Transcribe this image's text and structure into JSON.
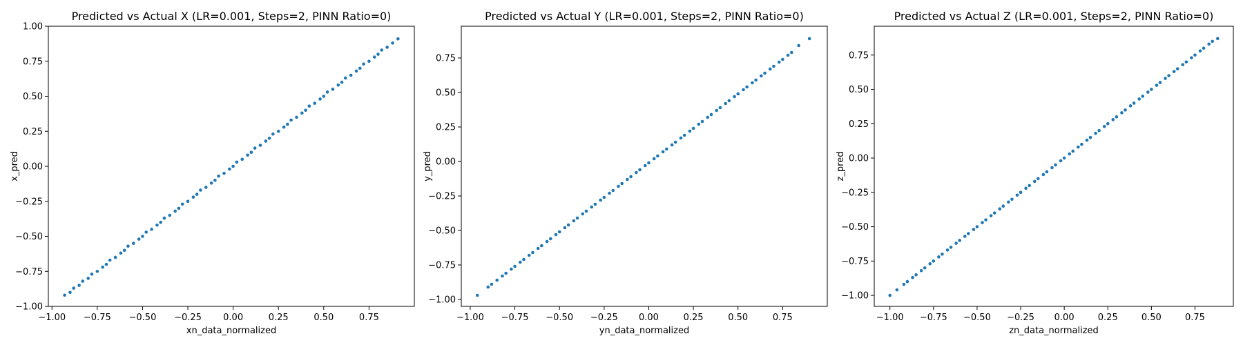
{
  "chart_data": [
    {
      "type": "scatter",
      "title": "Predicted vs Actual X (LR=0.001, Steps=2, PINN Ratio=0)",
      "xlabel": "xn_data_normalized",
      "ylabel": "x_pred",
      "xlim": [
        -1.02,
        1.0
      ],
      "ylim": [
        -1.0,
        1.0
      ],
      "xticks": [
        -1.0,
        -0.75,
        -0.5,
        -0.25,
        0.0,
        0.25,
        0.5,
        0.75
      ],
      "yticks": [
        -1.0,
        -0.75,
        -0.5,
        -0.25,
        0.0,
        0.25,
        0.5,
        0.75,
        1.0
      ],
      "xtick_labels": [
        "−1.00",
        "−0.75",
        "−0.50",
        "−0.25",
        "0.00",
        "0.25",
        "0.50",
        "0.75"
      ],
      "ytick_labels": [
        "−1.00",
        "−0.75",
        "−0.50",
        "−0.25",
        "0.00",
        "0.25",
        "0.50",
        "0.75",
        "1.00"
      ],
      "color": "#1f77b4",
      "grid": false,
      "series": [
        {
          "x": [
            -0.93,
            -0.9,
            -0.88,
            -0.85,
            -0.83,
            -0.8,
            -0.78,
            -0.75,
            -0.72,
            -0.7,
            -0.68,
            -0.65,
            -0.62,
            -0.6,
            -0.58,
            -0.55,
            -0.52,
            -0.5,
            -0.48,
            -0.45,
            -0.42,
            -0.4,
            -0.38,
            -0.35,
            -0.32,
            -0.3,
            -0.28,
            -0.25,
            -0.22,
            -0.2,
            -0.18,
            -0.15,
            -0.12,
            -0.1,
            -0.08,
            -0.05,
            -0.02,
            0.0,
            0.02,
            0.05,
            0.08,
            0.1,
            0.12,
            0.15,
            0.18,
            0.2,
            0.22,
            0.25,
            0.28,
            0.3,
            0.32,
            0.35,
            0.38,
            0.4,
            0.42,
            0.45,
            0.48,
            0.5,
            0.52,
            0.55,
            0.58,
            0.6,
            0.62,
            0.65,
            0.68,
            0.7,
            0.72,
            0.75,
            0.78,
            0.8,
            0.82,
            0.85,
            0.88,
            0.91
          ],
          "y": [
            -0.92,
            -0.9,
            -0.87,
            -0.85,
            -0.82,
            -0.8,
            -0.77,
            -0.75,
            -0.72,
            -0.7,
            -0.67,
            -0.65,
            -0.62,
            -0.6,
            -0.57,
            -0.55,
            -0.52,
            -0.5,
            -0.47,
            -0.45,
            -0.42,
            -0.4,
            -0.37,
            -0.35,
            -0.32,
            -0.3,
            -0.27,
            -0.25,
            -0.22,
            -0.2,
            -0.17,
            -0.15,
            -0.12,
            -0.1,
            -0.07,
            -0.05,
            -0.02,
            0.0,
            0.03,
            0.05,
            0.08,
            0.1,
            0.13,
            0.15,
            0.18,
            0.2,
            0.23,
            0.25,
            0.28,
            0.3,
            0.33,
            0.35,
            0.38,
            0.4,
            0.43,
            0.45,
            0.48,
            0.5,
            0.53,
            0.55,
            0.58,
            0.6,
            0.63,
            0.65,
            0.68,
            0.7,
            0.73,
            0.75,
            0.78,
            0.8,
            0.83,
            0.85,
            0.88,
            0.91
          ]
        }
      ]
    },
    {
      "type": "scatter",
      "title": "Predicted vs Actual Y (LR=0.001, Steps=2, PINN Ratio=0)",
      "xlabel": "yn_data_normalized",
      "ylabel": "y_pred",
      "xlim": [
        -1.05,
        1.0
      ],
      "ylim": [
        -1.05,
        0.98
      ],
      "xticks": [
        -1.0,
        -0.75,
        -0.5,
        -0.25,
        0.0,
        0.25,
        0.5,
        0.75
      ],
      "yticks": [
        -1.0,
        -0.75,
        -0.5,
        -0.25,
        0.0,
        0.25,
        0.5,
        0.75
      ],
      "xtick_labels": [
        "−1.00",
        "−0.75",
        "−0.50",
        "−0.25",
        "0.00",
        "0.25",
        "0.50",
        "0.75"
      ],
      "ytick_labels": [
        "−1.00",
        "−0.75",
        "−0.50",
        "−0.25",
        "0.00",
        "0.25",
        "0.50",
        "0.75"
      ],
      "color": "#1f77b4",
      "grid": false,
      "series": [
        {
          "x": [
            -0.96,
            -0.9,
            -0.88,
            -0.85,
            -0.82,
            -0.8,
            -0.77,
            -0.75,
            -0.72,
            -0.7,
            -0.67,
            -0.65,
            -0.62,
            -0.6,
            -0.57,
            -0.55,
            -0.52,
            -0.5,
            -0.47,
            -0.45,
            -0.42,
            -0.4,
            -0.37,
            -0.35,
            -0.32,
            -0.3,
            -0.27,
            -0.25,
            -0.22,
            -0.2,
            -0.17,
            -0.15,
            -0.12,
            -0.1,
            -0.07,
            -0.05,
            -0.02,
            0.0,
            0.03,
            0.05,
            0.08,
            0.1,
            0.13,
            0.15,
            0.18,
            0.2,
            0.23,
            0.25,
            0.28,
            0.3,
            0.33,
            0.35,
            0.38,
            0.4,
            0.43,
            0.45,
            0.48,
            0.5,
            0.53,
            0.55,
            0.58,
            0.6,
            0.63,
            0.65,
            0.68,
            0.7,
            0.73,
            0.75,
            0.78,
            0.8,
            0.84,
            0.9
          ],
          "y": [
            -0.97,
            -0.91,
            -0.89,
            -0.86,
            -0.83,
            -0.81,
            -0.78,
            -0.76,
            -0.73,
            -0.71,
            -0.68,
            -0.66,
            -0.63,
            -0.61,
            -0.58,
            -0.56,
            -0.53,
            -0.51,
            -0.48,
            -0.46,
            -0.43,
            -0.41,
            -0.38,
            -0.36,
            -0.33,
            -0.31,
            -0.28,
            -0.26,
            -0.23,
            -0.21,
            -0.18,
            -0.16,
            -0.13,
            -0.11,
            -0.08,
            -0.06,
            -0.03,
            -0.01,
            0.02,
            0.04,
            0.07,
            0.09,
            0.12,
            0.14,
            0.17,
            0.19,
            0.22,
            0.24,
            0.27,
            0.29,
            0.32,
            0.34,
            0.37,
            0.39,
            0.42,
            0.44,
            0.47,
            0.49,
            0.52,
            0.54,
            0.57,
            0.59,
            0.62,
            0.64,
            0.67,
            0.69,
            0.72,
            0.74,
            0.77,
            0.79,
            0.84,
            0.89
          ]
        }
      ]
    },
    {
      "type": "scatter",
      "title": "Predicted vs Actual Z (LR=0.001, Steps=2, PINN Ratio=0)",
      "xlabel": "zn_data_normalized",
      "ylabel": "z_pred",
      "xlim": [
        -1.09,
        0.97
      ],
      "ylim": [
        -1.08,
        0.96
      ],
      "xticks": [
        -1.0,
        -0.75,
        -0.5,
        -0.25,
        0.0,
        0.25,
        0.5,
        0.75
      ],
      "yticks": [
        -1.0,
        -0.75,
        -0.5,
        -0.25,
        0.0,
        0.25,
        0.5,
        0.75
      ],
      "xtick_labels": [
        "−1.00",
        "−0.75",
        "−0.50",
        "−0.25",
        "0.00",
        "0.25",
        "0.50",
        "0.75"
      ],
      "ytick_labels": [
        "−1.00",
        "−0.75",
        "−0.50",
        "−0.25",
        "0.00",
        "0.25",
        "0.50",
        "0.75"
      ],
      "color": "#1f77b4",
      "grid": false,
      "series": [
        {
          "x": [
            -1.0,
            -0.96,
            -0.92,
            -0.9,
            -0.87,
            -0.85,
            -0.82,
            -0.8,
            -0.77,
            -0.75,
            -0.72,
            -0.7,
            -0.67,
            -0.65,
            -0.62,
            -0.6,
            -0.57,
            -0.55,
            -0.52,
            -0.5,
            -0.47,
            -0.45,
            -0.42,
            -0.4,
            -0.37,
            -0.35,
            -0.32,
            -0.3,
            -0.27,
            -0.25,
            -0.22,
            -0.2,
            -0.17,
            -0.15,
            -0.12,
            -0.1,
            -0.07,
            -0.05,
            -0.02,
            0.0,
            0.03,
            0.05,
            0.08,
            0.1,
            0.13,
            0.15,
            0.18,
            0.2,
            0.23,
            0.25,
            0.28,
            0.3,
            0.33,
            0.35,
            0.38,
            0.4,
            0.43,
            0.45,
            0.48,
            0.5,
            0.53,
            0.55,
            0.58,
            0.6,
            0.63,
            0.65,
            0.68,
            0.7,
            0.73,
            0.75,
            0.78,
            0.8,
            0.83,
            0.85,
            0.88
          ],
          "y": [
            -1.0,
            -0.96,
            -0.92,
            -0.9,
            -0.87,
            -0.85,
            -0.82,
            -0.8,
            -0.77,
            -0.75,
            -0.72,
            -0.7,
            -0.67,
            -0.65,
            -0.62,
            -0.6,
            -0.57,
            -0.55,
            -0.52,
            -0.5,
            -0.47,
            -0.45,
            -0.42,
            -0.4,
            -0.37,
            -0.35,
            -0.32,
            -0.3,
            -0.27,
            -0.25,
            -0.22,
            -0.2,
            -0.17,
            -0.15,
            -0.12,
            -0.1,
            -0.07,
            -0.05,
            -0.02,
            0.0,
            0.03,
            0.05,
            0.08,
            0.1,
            0.13,
            0.15,
            0.18,
            0.2,
            0.23,
            0.25,
            0.28,
            0.3,
            0.33,
            0.35,
            0.38,
            0.4,
            0.43,
            0.45,
            0.48,
            0.5,
            0.53,
            0.55,
            0.58,
            0.6,
            0.63,
            0.65,
            0.68,
            0.7,
            0.73,
            0.75,
            0.78,
            0.8,
            0.83,
            0.85,
            0.87
          ]
        }
      ]
    }
  ]
}
